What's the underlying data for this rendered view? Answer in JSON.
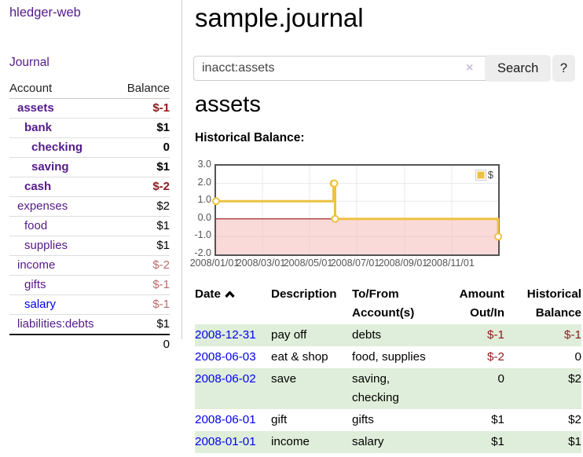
{
  "sidebar": {
    "app_title": "hledger-web",
    "journal_label": "Journal",
    "table": {
      "account_header": "Account",
      "balance_header": "Balance",
      "total": "0"
    },
    "accounts": [
      {
        "name": "assets",
        "level": 1,
        "bold": true,
        "link": "purple",
        "balance": "$-1",
        "balance_style": "neg"
      },
      {
        "name": "bank",
        "level": 2,
        "bold": true,
        "link": "purple",
        "balance": "$1",
        "balance_style": "pos"
      },
      {
        "name": "checking",
        "level": 3,
        "bold": true,
        "link": "purple",
        "balance": "0",
        "balance_style": "pos"
      },
      {
        "name": "saving",
        "level": 3,
        "bold": true,
        "link": "purple",
        "balance": "$1",
        "balance_style": "pos"
      },
      {
        "name": "cash",
        "level": 2,
        "bold": true,
        "link": "purple",
        "balance": "$-2",
        "balance_style": "neg"
      },
      {
        "name": "expenses",
        "level": 1,
        "bold": false,
        "link": "purple",
        "balance": "$2",
        "balance_style": "pos"
      },
      {
        "name": "food",
        "level": 2,
        "bold": false,
        "link": "purple",
        "balance": "$1",
        "balance_style": "pos"
      },
      {
        "name": "supplies",
        "level": 2,
        "bold": false,
        "link": "purple",
        "balance": "$1",
        "balance_style": "pos"
      },
      {
        "name": "income",
        "level": 1,
        "bold": false,
        "link": "purple",
        "balance": "$-2",
        "balance_style": "negmuted"
      },
      {
        "name": "gifts",
        "level": 2,
        "bold": false,
        "link": "purple",
        "balance": "$-1",
        "balance_style": "negmuted"
      },
      {
        "name": "salary",
        "level": 2,
        "bold": false,
        "link": "blue",
        "balance": "$-1",
        "balance_style": "negmuted"
      },
      {
        "name": "liabilities:debts",
        "level": 1,
        "bold": false,
        "link": "purple",
        "balance": "$1",
        "balance_style": "pos"
      }
    ]
  },
  "header": {
    "title": "sample.journal"
  },
  "search": {
    "value": "inacct:assets",
    "clear_icon": "×",
    "button_label": "Search",
    "help_label": "?"
  },
  "account_page": {
    "title": "assets",
    "chart_label": "Historical Balance:"
  },
  "chart_data": {
    "type": "line",
    "title": "Historical Balance",
    "line_style": "step",
    "legend": [
      {
        "label": "$",
        "color": "#edc240"
      }
    ],
    "legend_position": "top-right",
    "grid": true,
    "ylim": [
      -2,
      3
    ],
    "x_range": [
      "2008/01/01",
      "2008/12/31"
    ],
    "yticks": [
      {
        "value": 3,
        "label": "3.0"
      },
      {
        "value": 2,
        "label": "2.0"
      },
      {
        "value": 1,
        "label": "1.0"
      },
      {
        "value": 0,
        "label": "0.0"
      },
      {
        "value": -1,
        "label": "-1.0"
      },
      {
        "value": -2,
        "label": "-2.0"
      }
    ],
    "xticks": [
      {
        "day": 0,
        "label": "2008/01/01"
      },
      {
        "day": 60,
        "label": "2008/03/01"
      },
      {
        "day": 121,
        "label": "2008/05/01"
      },
      {
        "day": 182,
        "label": "2008/07/01"
      },
      {
        "day": 244,
        "label": "2008/09/01"
      },
      {
        "day": 305,
        "label": "2008/11/01"
      }
    ],
    "series": [
      {
        "name": "$",
        "color": "#edc240",
        "points": [
          {
            "date": "2008-01-01",
            "day": 0,
            "value": 1
          },
          {
            "date": "2008-06-01",
            "day": 152,
            "value": 2
          },
          {
            "date": "2008-06-02",
            "day": 153,
            "value": 2
          },
          {
            "date": "2008-06-03",
            "day": 154,
            "value": 0
          },
          {
            "date": "2008-12-31",
            "day": 365,
            "value": -1
          }
        ]
      }
    ],
    "negative_region_color": "#f6baba",
    "zero_line_color": "#8b0000",
    "x_total_days": 365
  },
  "register": {
    "headers": {
      "date": "Date",
      "description": "Description",
      "accounts": "To/From Account(s)",
      "amount": "Amount Out/In",
      "balance": "Historical Balance"
    },
    "rows": [
      {
        "date": "2008-12-31",
        "description": "pay off",
        "accounts": "debts",
        "amount": "$-1",
        "amount_style": "neg",
        "balance": "$-1",
        "balance_style": "neg"
      },
      {
        "date": "2008-06-03",
        "description": "eat & shop",
        "accounts": "food, supplies",
        "amount": "$-2",
        "amount_style": "neg",
        "balance": "0",
        "balance_style": "pos"
      },
      {
        "date": "2008-06-02",
        "description": "save",
        "accounts": "saving, checking",
        "amount": "0",
        "amount_style": "pos",
        "balance": "$2",
        "balance_style": "pos"
      },
      {
        "date": "2008-06-01",
        "description": "gift",
        "accounts": "gifts",
        "amount": "$1",
        "amount_style": "pos",
        "balance": "$2",
        "balance_style": "pos"
      },
      {
        "date": "2008-01-01",
        "description": "income",
        "accounts": "salary",
        "amount": "$1",
        "amount_style": "pos",
        "balance": "$1",
        "balance_style": "pos"
      }
    ]
  },
  "colors": {
    "link_purple": "#551a8b",
    "link_blue": "#0000ee",
    "negative_strong": "#8b1b1b",
    "negative_muted": "#bb6b6b",
    "row_green": "#dfeeda",
    "series_gold": "#edc240",
    "chart_border": "#545454"
  }
}
